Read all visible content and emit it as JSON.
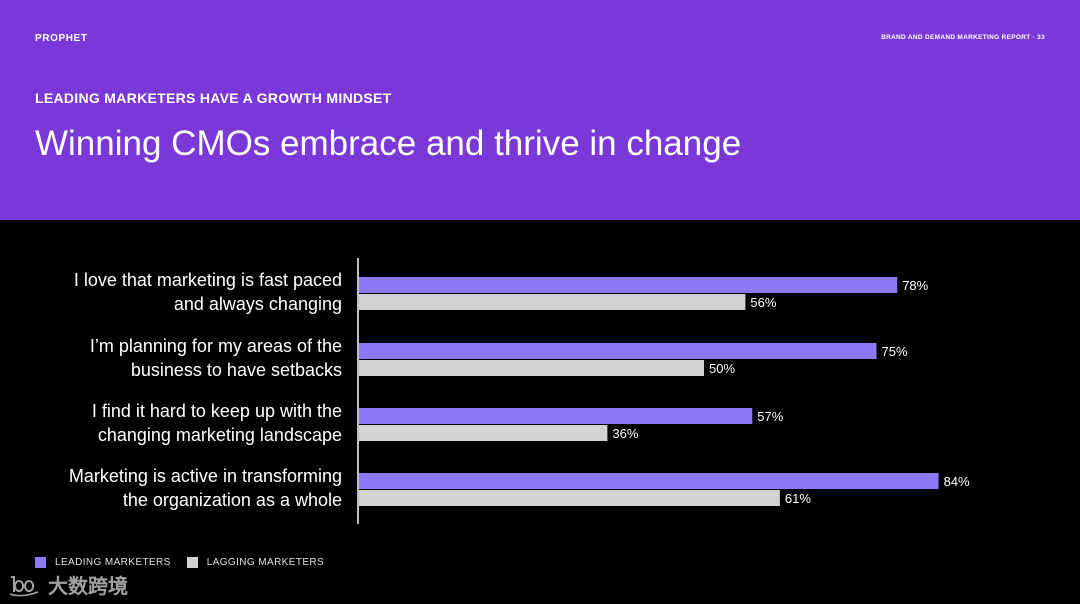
{
  "header": {
    "brand": "PROPHET",
    "report_label": "BRAND AND DEMAND MARKETING REPORT · 33",
    "eyebrow": "LEADING MARKETERS HAVE A GROWTH MINDSET",
    "title": "Winning CMOs embrace and thrive in change"
  },
  "colors": {
    "hero_bg": "#7b38d8",
    "leading": "#8b78f5",
    "lagging": "#d2d2d2",
    "page_bg": "#000000",
    "text": "#ffffff"
  },
  "legend": [
    {
      "label": "LEADING MARKETERS",
      "color": "#8b78f5"
    },
    {
      "label": "LAGGING MARKETERS",
      "color": "#d2d2d2"
    }
  ],
  "watermark": {
    "text": "大数跨境",
    "logo": "100-logo-icon"
  },
  "chart_data": {
    "type": "bar",
    "orientation": "horizontal",
    "title": "Winning CMOs embrace and thrive in change",
    "xlabel": "",
    "ylabel": "",
    "xlim": [
      0,
      100
    ],
    "value_suffix": "%",
    "categories": [
      [
        "I love that marketing is fast paced",
        "and always changing"
      ],
      [
        "I’m planning for my areas of the",
        "business to have setbacks"
      ],
      [
        "I find it hard to keep up with the",
        "changing marketing landscape"
      ],
      [
        "Marketing is active in transforming",
        "the organization as a whole"
      ]
    ],
    "series": [
      {
        "name": "LEADING MARKETERS",
        "values": [
          78,
          75,
          57,
          84
        ]
      },
      {
        "name": "LAGGING MARKETERS",
        "values": [
          56,
          50,
          36,
          61
        ]
      }
    ]
  }
}
